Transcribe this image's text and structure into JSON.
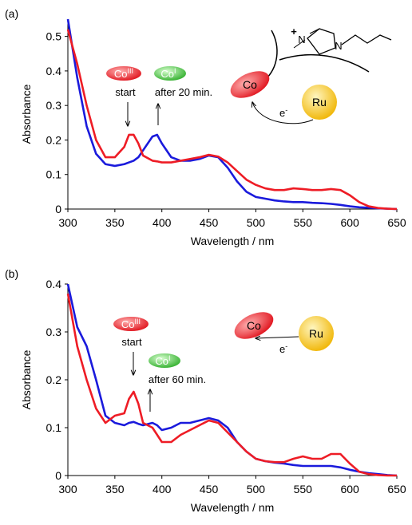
{
  "chart_data": [
    {
      "type": "line",
      "panel_label": "(a)",
      "xlabel": "Wavelength / nm",
      "ylabel": "Absorbance",
      "x": [
        300,
        310,
        320,
        330,
        340,
        350,
        360,
        365,
        370,
        375,
        380,
        390,
        395,
        400,
        410,
        420,
        430,
        440,
        450,
        460,
        470,
        480,
        490,
        500,
        510,
        520,
        530,
        540,
        550,
        560,
        570,
        580,
        590,
        600,
        610,
        620,
        630,
        640,
        650
      ],
      "series": [
        {
          "color": "#ee1c25",
          "values": [
            0.52,
            0.42,
            0.3,
            0.2,
            0.15,
            0.15,
            0.18,
            0.215,
            0.215,
            0.19,
            0.155,
            0.14,
            0.138,
            0.135,
            0.135,
            0.14,
            0.145,
            0.15,
            0.157,
            0.152,
            0.135,
            0.11,
            0.085,
            0.07,
            0.06,
            0.055,
            0.055,
            0.06,
            0.058,
            0.055,
            0.055,
            0.058,
            0.055,
            0.04,
            0.02,
            0.008,
            0.003,
            0.001,
            0
          ]
        },
        {
          "color": "#1a1adc",
          "values": [
            0.55,
            0.38,
            0.24,
            0.16,
            0.13,
            0.125,
            0.13,
            0.135,
            0.14,
            0.15,
            0.17,
            0.21,
            0.215,
            0.19,
            0.15,
            0.14,
            0.14,
            0.145,
            0.155,
            0.15,
            0.12,
            0.08,
            0.05,
            0.035,
            0.03,
            0.025,
            0.022,
            0.02,
            0.02,
            0.018,
            0.017,
            0.015,
            0.012,
            0.008,
            0.005,
            0.004,
            0.002,
            0.001,
            0
          ]
        }
      ],
      "xlim": [
        300,
        650
      ],
      "xticks": [
        300,
        350,
        400,
        450,
        500,
        550,
        600,
        650
      ],
      "ylim": [
        0,
        0.55
      ],
      "yticks": [
        0,
        0.1,
        0.2,
        0.3,
        0.4,
        0.5
      ],
      "annotations": {
        "co_start": {
          "text": "Co",
          "sup": "III"
        },
        "start": "start",
        "co_end": {
          "text": "Co",
          "sup": "I"
        },
        "end": "after 20 min.",
        "scheme": {
          "co": "Co",
          "ru": "Ru",
          "electron": {
            "text": "e",
            "sup": "-"
          },
          "charge": "+",
          "n1": "N",
          "n2": "N"
        }
      }
    },
    {
      "type": "line",
      "panel_label": "(b)",
      "xlabel": "Wavelength / nm",
      "ylabel": "Absorbance",
      "x": [
        300,
        310,
        320,
        330,
        340,
        350,
        360,
        365,
        370,
        375,
        380,
        390,
        395,
        400,
        410,
        420,
        430,
        440,
        450,
        460,
        470,
        480,
        490,
        500,
        510,
        520,
        530,
        540,
        550,
        560,
        570,
        580,
        590,
        600,
        610,
        620,
        630,
        640,
        650
      ],
      "series": [
        {
          "color": "#ee1c25",
          "values": [
            0.38,
            0.27,
            0.2,
            0.14,
            0.11,
            0.125,
            0.13,
            0.16,
            0.175,
            0.15,
            0.11,
            0.1,
            0.085,
            0.07,
            0.07,
            0.085,
            0.095,
            0.105,
            0.115,
            0.11,
            0.09,
            0.07,
            0.05,
            0.035,
            0.03,
            0.028,
            0.028,
            0.035,
            0.04,
            0.035,
            0.035,
            0.045,
            0.045,
            0.025,
            0.008,
            0.003,
            0.001,
            0,
            0
          ]
        },
        {
          "color": "#1a1adc",
          "values": [
            0.4,
            0.31,
            0.27,
            0.2,
            0.125,
            0.11,
            0.105,
            0.11,
            0.112,
            0.108,
            0.105,
            0.11,
            0.105,
            0.095,
            0.1,
            0.11,
            0.11,
            0.115,
            0.12,
            0.115,
            0.1,
            0.07,
            0.05,
            0.035,
            0.03,
            0.027,
            0.025,
            0.022,
            0.02,
            0.02,
            0.02,
            0.02,
            0.017,
            0.012,
            0.008,
            0.005,
            0.003,
            0.001,
            0
          ]
        }
      ],
      "xlim": [
        300,
        650
      ],
      "xticks": [
        300,
        350,
        400,
        450,
        500,
        550,
        600,
        650
      ],
      "ylim": [
        0,
        0.4
      ],
      "yticks": [
        0,
        0.1,
        0.2,
        0.3,
        0.4
      ],
      "annotations": {
        "co_start": {
          "text": "Co",
          "sup": "III"
        },
        "start": "start",
        "co_end": {
          "text": "Co",
          "sup": "I"
        },
        "end": "after 60 min.",
        "scheme": {
          "co": "Co",
          "ru": "Ru",
          "electron": {
            "text": "e",
            "sup": "-"
          }
        }
      }
    }
  ]
}
